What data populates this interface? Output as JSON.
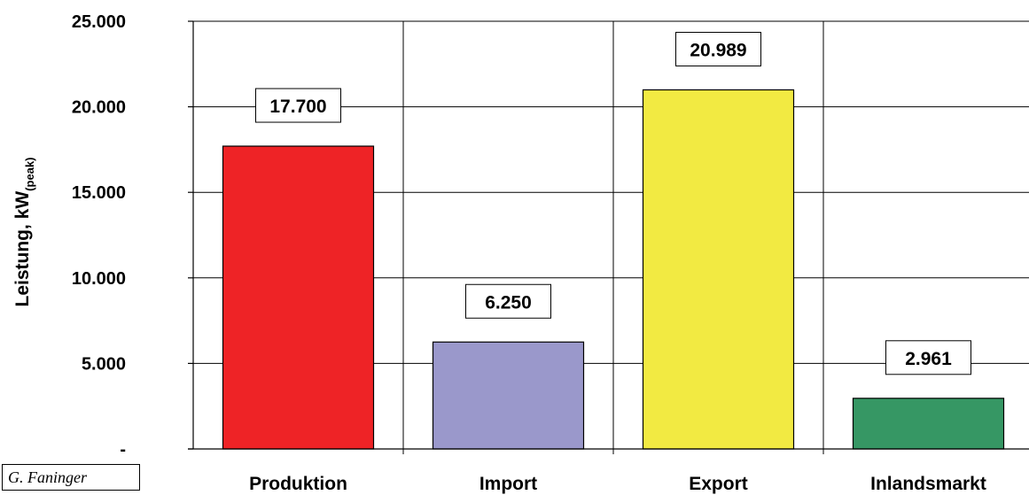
{
  "chart_data": {
    "type": "bar",
    "categories": [
      "Produktion",
      "Import",
      "Export",
      "Inlandsmarkt"
    ],
    "values": [
      17700,
      6250,
      20989,
      2961
    ],
    "data_labels": [
      "17.700",
      "6.250",
      "20.989",
      "2.961"
    ],
    "colors": [
      "#ee2326",
      "#9a98cb",
      "#f2ea42",
      "#369764"
    ],
    "ylabel": "Leistung, kW",
    "ylabel_subscript": "(peak)",
    "ylim": [
      0,
      25000
    ],
    "yticks": [
      0,
      5000,
      10000,
      15000,
      20000,
      25000
    ],
    "ytick_labels": [
      "-",
      "5.000",
      "10.000",
      "15.000",
      "20.000",
      "25.000"
    ],
    "grid": "horizontal and vertical",
    "legend": "none"
  },
  "credit": "G. Faninger"
}
